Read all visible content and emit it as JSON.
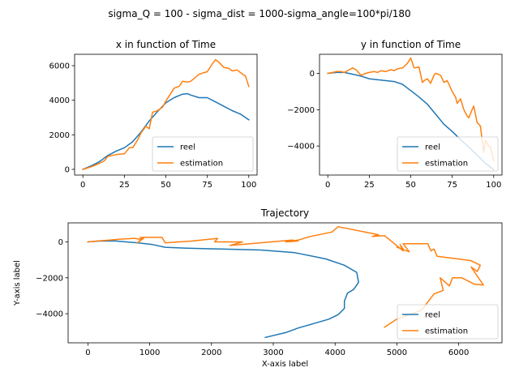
{
  "suptitle": "sigma_Q = 100 - sigma_dist = 1000-sigma_angle=100*pi/180",
  "colors": {
    "reel": "#1f77b4",
    "estimation": "#ff7f0e"
  },
  "chart_data": [
    {
      "type": "line",
      "title": "x in function of Time",
      "xlabel": "",
      "ylabel": "",
      "xlim": [
        -5,
        105
      ],
      "ylim": [
        -330,
        6660
      ],
      "xticks": [
        0,
        25,
        50,
        75,
        100
      ],
      "yticks": [
        0,
        2000,
        4000,
        6000
      ],
      "legend": "lower right",
      "series": [
        {
          "name": "reel",
          "x": [
            0,
            5,
            10,
            15,
            20,
            25,
            30,
            35,
            40,
            45,
            50,
            55,
            60,
            63,
            65,
            70,
            75,
            80,
            85,
            90,
            95,
            100
          ],
          "y": [
            0,
            200,
            450,
            800,
            1050,
            1250,
            1600,
            2150,
            2800,
            3350,
            3850,
            4150,
            4350,
            4380,
            4300,
            4150,
            4150,
            3900,
            3650,
            3400,
            3200,
            2870
          ]
        },
        {
          "name": "estimation",
          "x": [
            0,
            5,
            10,
            13,
            15,
            20,
            25,
            28,
            30,
            33,
            35,
            38,
            40,
            42,
            45,
            48,
            50,
            55,
            58,
            60,
            63,
            65,
            70,
            73,
            75,
            78,
            80,
            82,
            85,
            88,
            90,
            93,
            95,
            98,
            100
          ],
          "y": [
            0,
            150,
            350,
            500,
            750,
            850,
            900,
            1250,
            1250,
            1700,
            2100,
            2500,
            2350,
            3300,
            3400,
            3600,
            3950,
            4700,
            4800,
            5100,
            5050,
            5100,
            5500,
            5600,
            5650,
            6100,
            6350,
            6200,
            5900,
            5850,
            5700,
            5750,
            5600,
            5400,
            4800
          ]
        }
      ]
    },
    {
      "type": "line",
      "title": "y in function of Time",
      "xlabel": "",
      "ylabel": "",
      "xlim": [
        -5,
        105
      ],
      "ylim": [
        -5600,
        1050
      ],
      "xticks": [
        0,
        25,
        50,
        75,
        100
      ],
      "yticks": [
        0,
        -2000,
        -4000
      ],
      "legend": "lower right",
      "series": [
        {
          "name": "reel",
          "x": [
            0,
            5,
            10,
            15,
            20,
            25,
            30,
            35,
            40,
            45,
            50,
            55,
            60,
            65,
            70,
            75,
            80,
            85,
            90,
            95,
            100
          ],
          "y": [
            0,
            50,
            50,
            -50,
            -150,
            -300,
            -350,
            -400,
            -450,
            -600,
            -950,
            -1300,
            -1700,
            -2250,
            -2800,
            -3200,
            -3650,
            -4050,
            -4500,
            -4950,
            -5300
          ]
        },
        {
          "name": "estimation",
          "x": [
            0,
            3,
            5,
            8,
            10,
            13,
            15,
            17,
            20,
            23,
            25,
            28,
            30,
            32,
            35,
            38,
            40,
            42,
            45,
            48,
            50,
            52,
            55,
            57,
            58,
            60,
            62,
            64,
            65,
            68,
            70,
            72,
            74,
            75,
            77,
            78,
            80,
            82,
            84,
            85,
            87,
            88,
            90,
            92,
            94,
            95,
            97,
            98,
            100
          ],
          "y": [
            0,
            50,
            100,
            100,
            50,
            200,
            300,
            200,
            -100,
            0,
            50,
            100,
            50,
            150,
            100,
            200,
            150,
            250,
            300,
            550,
            850,
            300,
            350,
            -500,
            -400,
            -300,
            -550,
            -100,
            0,
            -100,
            -500,
            -400,
            -800,
            -1000,
            -1300,
            -1650,
            -1400,
            -2000,
            -2350,
            -2450,
            -2000,
            -1800,
            -2700,
            -2900,
            -4350,
            -3700,
            -4000,
            -4050,
            -4800
          ]
        }
      ]
    },
    {
      "type": "line",
      "title": "Trajectory",
      "xlabel": "X-axis label",
      "ylabel": "Y-axis label",
      "xlim": [
        -320,
        6700
      ],
      "ylim": [
        -5620,
        1060
      ],
      "xticks": [
        0,
        1000,
        2000,
        3000,
        4000,
        5000,
        6000
      ],
      "yticks": [
        0,
        -2000,
        -4000
      ],
      "legend": "lower right",
      "series": [
        {
          "name": "reel",
          "x": [
            0,
            200,
            450,
            800,
            1050,
            1250,
            1600,
            2150,
            2800,
            3350,
            3850,
            4150,
            4350,
            4380,
            4300,
            4200,
            4150,
            4150,
            4050,
            3900,
            3650,
            3400,
            3200,
            2870
          ],
          "y": [
            0,
            50,
            50,
            -50,
            -150,
            -300,
            -350,
            -400,
            -450,
            -600,
            -950,
            -1300,
            -1700,
            -2250,
            -2650,
            -2850,
            -3300,
            -3700,
            -4050,
            -4300,
            -4550,
            -4800,
            -5050,
            -5320
          ]
        },
        {
          "name": "estimation",
          "x": [
            0,
            150,
            350,
            500,
            750,
            850,
            900,
            800,
            850,
            850,
            1200,
            1250,
            1700,
            2100,
            2050,
            2500,
            2400,
            2300,
            3300,
            3400,
            3200,
            3400,
            3600,
            3950,
            4050,
            4700,
            4600,
            4800,
            5100,
            5050,
            5100,
            5000,
            5200,
            5100,
            5500,
            5550,
            5600,
            5650,
            6100,
            6200,
            6350,
            6300,
            6200,
            6400,
            6250,
            6050,
            5900,
            5850,
            5700,
            5750,
            5600,
            5400,
            5000,
            4800
          ],
          "y": [
            0,
            50,
            100,
            150,
            200,
            150,
            200,
            -50,
            100,
            250,
            250,
            -50,
            50,
            200,
            0,
            0,
            -100,
            -200,
            100,
            50,
            0,
            100,
            300,
            550,
            850,
            400,
            300,
            350,
            -500,
            -150,
            -400,
            -300,
            -550,
            -100,
            -100,
            -500,
            -400,
            -800,
            -1000,
            -1050,
            -1300,
            -1650,
            -1400,
            -2400,
            -2350,
            -2000,
            -2000,
            -2450,
            -2000,
            -2700,
            -2900,
            -3800,
            -4300,
            -4750
          ]
        }
      ]
    }
  ]
}
